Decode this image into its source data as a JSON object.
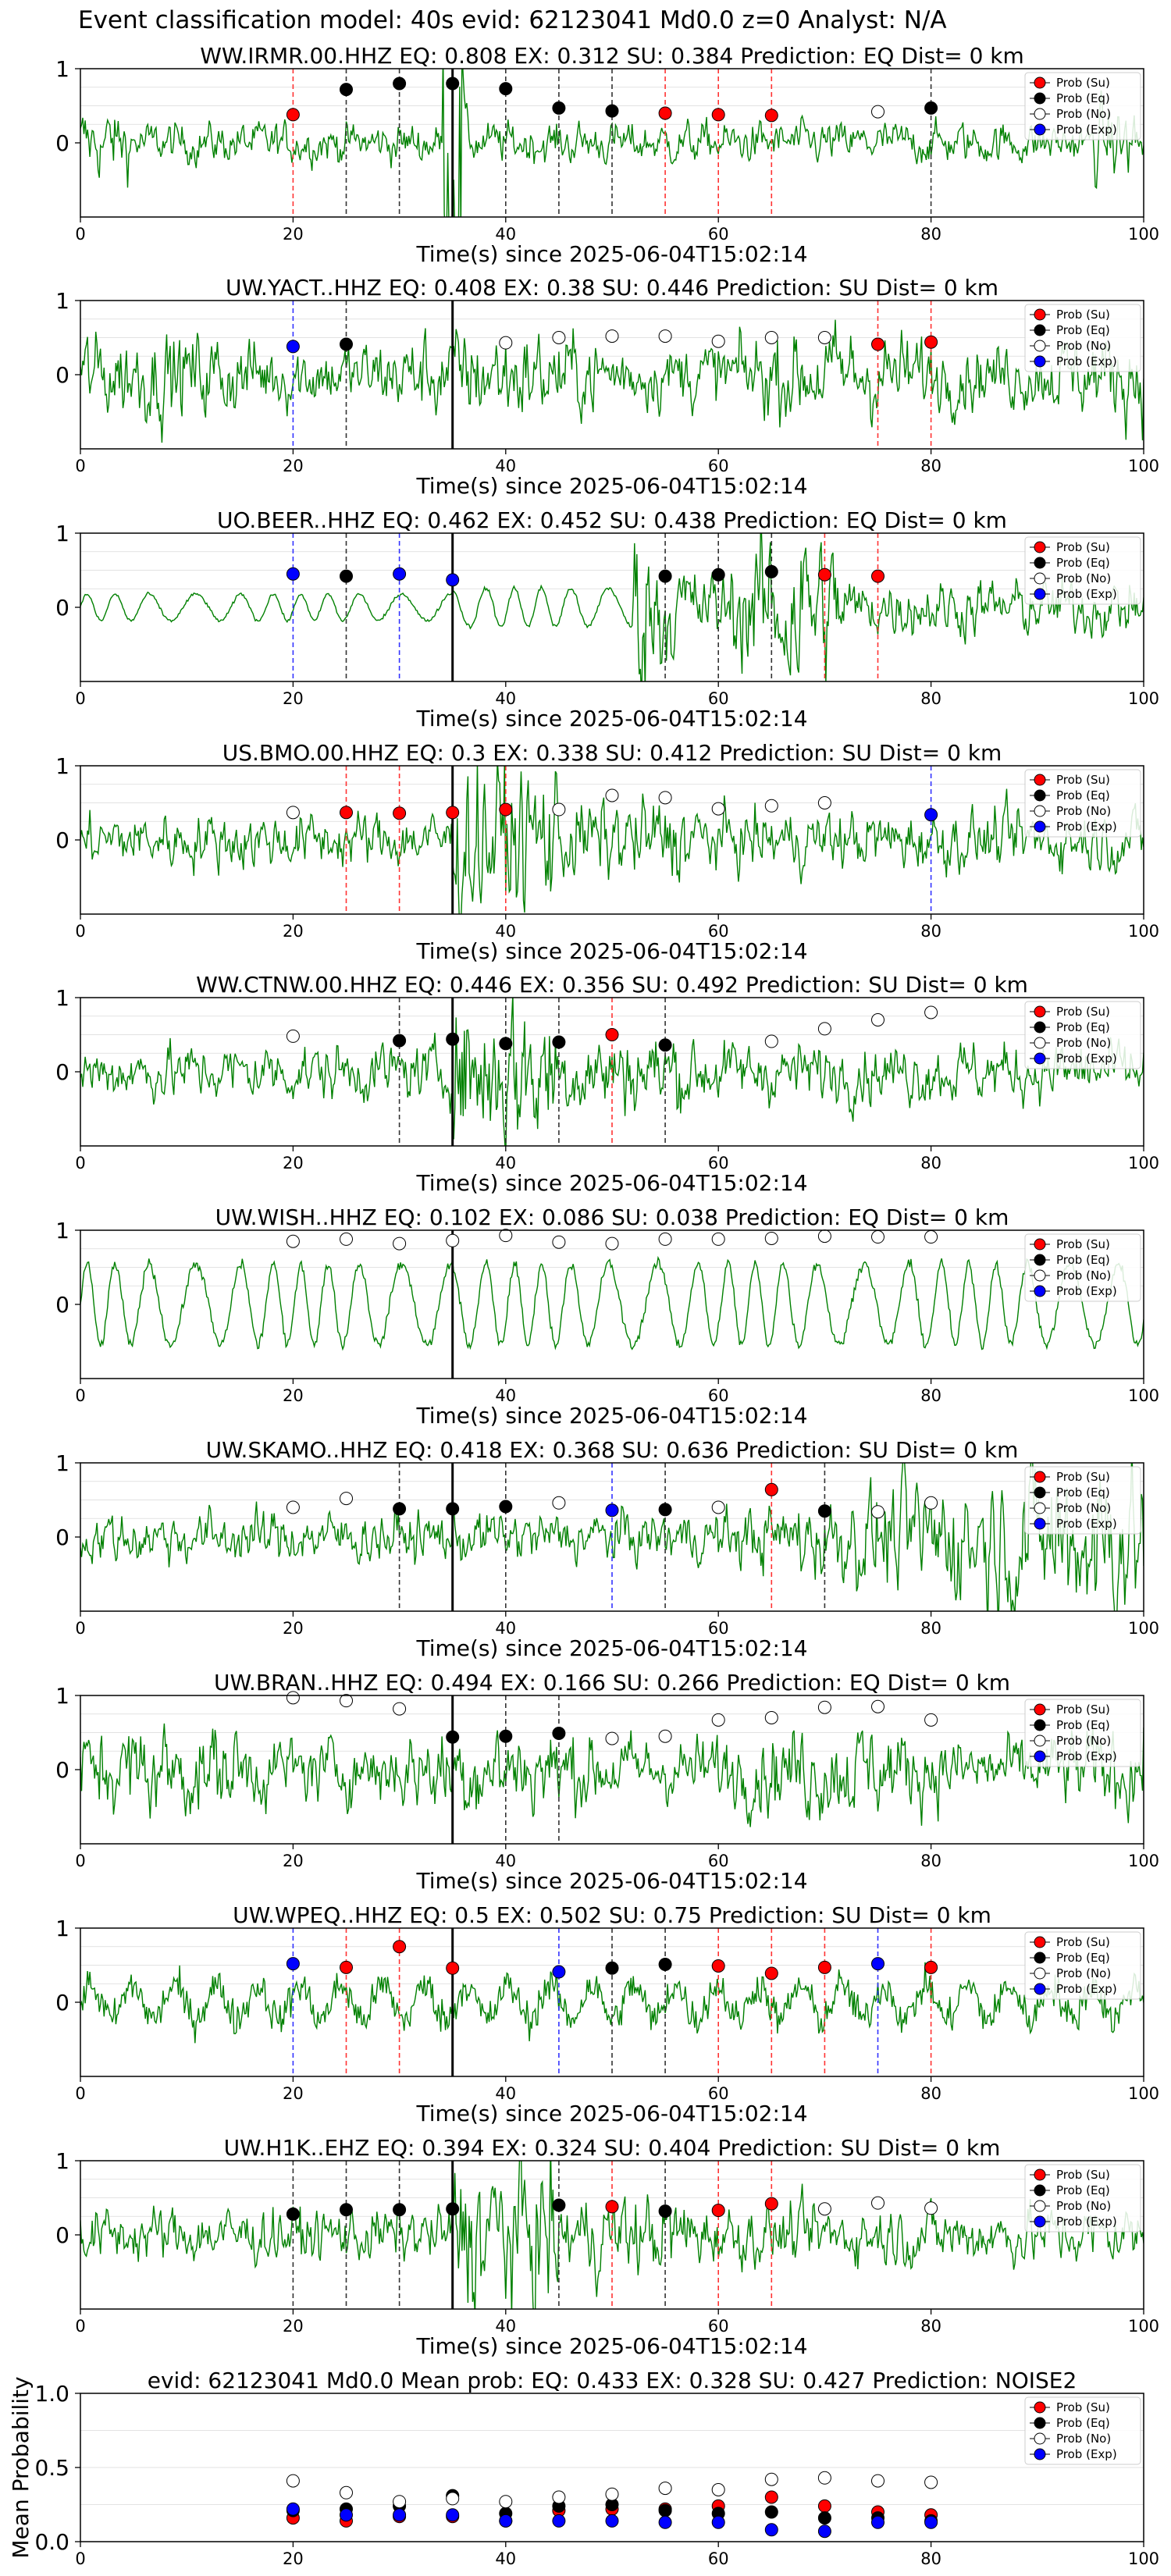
{
  "suptitle": "Event classification model: 40s evid: 62123041 Md0.0 z=0 Analyst: N/A",
  "colors": {
    "trace": "#008000",
    "su": "#ff0000",
    "eq": "#000000",
    "no": "#ffffff",
    "exp": "#0000ff",
    "vline_su": "#ff3333",
    "vline_eq": "#333333",
    "vline_exp": "#3333ff",
    "grid": "#d9d9d9"
  },
  "legend": {
    "position": "top-right",
    "entries": [
      {
        "key": "su",
        "label": "Prob (Su)"
      },
      {
        "key": "eq",
        "label": "Prob (Eq)"
      },
      {
        "key": "no",
        "label": "Prob (No)"
      },
      {
        "key": "exp",
        "label": "Prob (Exp)"
      }
    ]
  },
  "chart_data": [
    {
      "type": "line",
      "title": "WW.IRMR.00.HHZ   EQ: 0.808  EX: 0.312  SU: 0.384   Prediction: EQ    Dist= 0 km",
      "xlabel": "Time(s) since 2025-06-04T15:02:14",
      "xlim": [
        0,
        100
      ],
      "ylim": [
        -1,
        1
      ],
      "xticks": [
        0,
        20,
        40,
        60,
        80,
        100
      ],
      "yticks": [
        0,
        1
      ],
      "p_arrival": 35,
      "trace_style": "impulsive",
      "window_x": [
        20,
        25,
        30,
        35,
        40,
        45,
        50,
        55,
        60,
        65,
        75,
        80
      ],
      "classes": [
        "su",
        "eq",
        "eq",
        "eq",
        "eq",
        "eq",
        "eq",
        "su",
        "su",
        "su",
        "no",
        "eq"
      ],
      "prob": [
        0.38,
        0.72,
        0.8,
        0.8,
        0.73,
        0.47,
        0.43,
        0.4,
        0.38,
        0.37,
        0.42,
        0.47
      ]
    },
    {
      "type": "line",
      "title": "UW.YACT..HHZ   EQ: 0.408  EX: 0.38  SU: 0.446   Prediction: SU    Dist= 0 km",
      "xlabel": "Time(s) since 2025-06-04T15:02:14",
      "xlim": [
        0,
        100
      ],
      "ylim": [
        -1,
        1
      ],
      "xticks": [
        0,
        20,
        40,
        60,
        80,
        100
      ],
      "yticks": [
        0,
        1
      ],
      "p_arrival": 35,
      "trace_style": "broadband",
      "window_x": [
        20,
        25,
        40,
        45,
        50,
        55,
        60,
        65,
        70,
        75,
        80
      ],
      "classes": [
        "exp",
        "eq",
        "no",
        "no",
        "no",
        "no",
        "no",
        "no",
        "no",
        "su",
        "su"
      ],
      "prob": [
        0.38,
        0.41,
        0.43,
        0.5,
        0.52,
        0.52,
        0.45,
        0.5,
        0.5,
        0.41,
        0.44
      ]
    },
    {
      "type": "line",
      "title": "UO.BEER..HHZ   EQ: 0.462  EX: 0.452  SU: 0.438   Prediction: EQ    Dist= 0 km",
      "xlabel": "Time(s) since 2025-06-04T15:02:14",
      "xlim": [
        0,
        100
      ],
      "ylim": [
        -1,
        1
      ],
      "xticks": [
        0,
        20,
        40,
        60,
        80,
        100
      ],
      "yticks": [
        0,
        1
      ],
      "p_arrival": 35,
      "trace_style": "late_burst",
      "window_x": [
        20,
        25,
        30,
        35,
        55,
        60,
        65,
        70,
        75
      ],
      "classes": [
        "exp",
        "eq",
        "exp",
        "exp",
        "eq",
        "eq",
        "eq",
        "su",
        "su"
      ],
      "prob": [
        0.45,
        0.42,
        0.45,
        0.37,
        0.42,
        0.44,
        0.48,
        0.44,
        0.42
      ]
    },
    {
      "type": "line",
      "title": "US.BMO.00.HHZ   EQ: 0.3  EX: 0.338  SU: 0.412   Prediction: SU    Dist= 0 km",
      "xlabel": "Time(s) since 2025-06-04T15:02:14",
      "xlim": [
        0,
        100
      ],
      "ylim": [
        -1,
        1
      ],
      "xticks": [
        0,
        20,
        40,
        60,
        80,
        100
      ],
      "yticks": [
        0,
        1
      ],
      "p_arrival": 35,
      "trace_style": "burst",
      "window_x": [
        20,
        25,
        30,
        35,
        40,
        45,
        50,
        55,
        60,
        65,
        70,
        80
      ],
      "classes": [
        "no",
        "su",
        "su",
        "su",
        "su",
        "no",
        "no",
        "no",
        "no",
        "no",
        "no",
        "exp"
      ],
      "prob": [
        0.37,
        0.37,
        0.36,
        0.37,
        0.41,
        0.41,
        0.6,
        0.57,
        0.42,
        0.46,
        0.5,
        0.34
      ]
    },
    {
      "type": "line",
      "title": "WW.CTNW.00.HHZ   EQ: 0.446  EX: 0.356  SU: 0.492   Prediction: SU    Dist= 0 km",
      "xlabel": "Time(s) since 2025-06-04T15:02:14",
      "xlim": [
        0,
        100
      ],
      "ylim": [
        -1,
        1
      ],
      "xticks": [
        0,
        20,
        40,
        60,
        80,
        100
      ],
      "yticks": [
        0,
        1
      ],
      "p_arrival": 35,
      "trace_style": "burst",
      "window_x": [
        20,
        30,
        35,
        40,
        45,
        50,
        55,
        65,
        70,
        75,
        80
      ],
      "classes": [
        "no",
        "eq",
        "eq",
        "eq",
        "eq",
        "su",
        "eq",
        "no",
        "no",
        "no",
        "no"
      ],
      "prob": [
        0.48,
        0.42,
        0.44,
        0.38,
        0.4,
        0.5,
        0.36,
        0.41,
        0.58,
        0.7,
        0.8
      ]
    },
    {
      "type": "line",
      "title": "UW.WISH..HHZ   EQ: 0.102  EX: 0.086  SU: 0.038   Prediction: EQ    Dist= 0 km",
      "xlabel": "Time(s) since 2025-06-04T15:02:14",
      "xlim": [
        0,
        100
      ],
      "ylim": [
        -1,
        1
      ],
      "xticks": [
        0,
        20,
        40,
        60,
        80,
        100
      ],
      "yticks": [
        0,
        1
      ],
      "p_arrival": 35,
      "trace_style": "lowfreq",
      "window_x": [
        20,
        25,
        30,
        35,
        40,
        45,
        50,
        55,
        60,
        65,
        70,
        75,
        80
      ],
      "classes": [
        "no",
        "no",
        "no",
        "no",
        "no",
        "no",
        "no",
        "no",
        "no",
        "no",
        "no",
        "no",
        "no"
      ],
      "prob": [
        0.85,
        0.88,
        0.82,
        0.86,
        0.93,
        0.84,
        0.82,
        0.88,
        0.88,
        0.89,
        0.92,
        0.91,
        0.91
      ]
    },
    {
      "type": "line",
      "title": "UW.SKAMO..HHZ   EQ: 0.418  EX: 0.368  SU: 0.636   Prediction: SU    Dist= 0 km",
      "xlabel": "Time(s) since 2025-06-04T15:02:14",
      "xlim": [
        0,
        100
      ],
      "ylim": [
        -1,
        1
      ],
      "xticks": [
        0,
        20,
        40,
        60,
        80,
        100
      ],
      "yticks": [
        0,
        1
      ],
      "p_arrival": 35,
      "trace_style": "growing",
      "window_x": [
        20,
        25,
        30,
        35,
        40,
        45,
        50,
        55,
        60,
        65,
        70,
        75,
        80
      ],
      "classes": [
        "no",
        "no",
        "eq",
        "eq",
        "eq",
        "no",
        "exp",
        "eq",
        "no",
        "su",
        "eq",
        "no",
        "no"
      ],
      "prob": [
        0.4,
        0.52,
        0.38,
        0.38,
        0.41,
        0.46,
        0.36,
        0.37,
        0.4,
        0.64,
        0.35,
        0.34,
        0.46
      ]
    },
    {
      "type": "line",
      "title": "UW.BRAN..HHZ   EQ: 0.494  EX: 0.166  SU: 0.266   Prediction: EQ    Dist= 0 km",
      "xlabel": "Time(s) since 2025-06-04T15:02:14",
      "xlim": [
        0,
        100
      ],
      "ylim": [
        -1,
        1
      ],
      "xticks": [
        0,
        20,
        40,
        60,
        80,
        100
      ],
      "yticks": [
        0,
        1
      ],
      "p_arrival": 35,
      "trace_style": "broadband",
      "window_x": [
        20,
        25,
        30,
        35,
        40,
        45,
        50,
        55,
        60,
        65,
        70,
        75,
        80
      ],
      "classes": [
        "no",
        "no",
        "no",
        "eq",
        "eq",
        "eq",
        "no",
        "no",
        "no",
        "no",
        "no",
        "no",
        "no"
      ],
      "prob": [
        0.97,
        0.93,
        0.82,
        0.44,
        0.45,
        0.49,
        0.42,
        0.45,
        0.67,
        0.7,
        0.84,
        0.85,
        0.67
      ]
    },
    {
      "type": "line",
      "title": "UW.WPEQ..HHZ   EQ: 0.5  EX: 0.502  SU: 0.75   Prediction: SU    Dist= 0 km",
      "xlabel": "Time(s) since 2025-06-04T15:02:14",
      "xlim": [
        0,
        100
      ],
      "ylim": [
        -1,
        1
      ],
      "xticks": [
        0,
        20,
        40,
        60,
        80,
        100
      ],
      "yticks": [
        0,
        1
      ],
      "p_arrival": 35,
      "trace_style": "mixed",
      "window_x": [
        20,
        25,
        30,
        35,
        45,
        50,
        55,
        60,
        65,
        70,
        75,
        80
      ],
      "classes": [
        "exp",
        "su",
        "su",
        "su",
        "exp",
        "eq",
        "eq",
        "su",
        "su",
        "su",
        "exp",
        "su"
      ],
      "prob": [
        0.52,
        0.47,
        0.75,
        0.46,
        0.41,
        0.46,
        0.51,
        0.49,
        0.39,
        0.47,
        0.52,
        0.47
      ]
    },
    {
      "type": "line",
      "title": "UW.H1K..EHZ   EQ: 0.394  EX: 0.324  SU: 0.404   Prediction: SU    Dist= 0 km",
      "xlabel": "Time(s) since 2025-06-04T15:02:14",
      "xlim": [
        0,
        100
      ],
      "ylim": [
        -1,
        1
      ],
      "xticks": [
        0,
        20,
        40,
        60,
        80,
        100
      ],
      "yticks": [
        0,
        1
      ],
      "p_arrival": 35,
      "trace_style": "burst",
      "window_x": [
        20,
        25,
        30,
        35,
        45,
        50,
        55,
        60,
        65,
        70,
        75,
        80
      ],
      "classes": [
        "eq",
        "eq",
        "eq",
        "eq",
        "eq",
        "su",
        "eq",
        "su",
        "su",
        "no",
        "no",
        "no"
      ],
      "prob": [
        0.28,
        0.34,
        0.34,
        0.35,
        0.4,
        0.38,
        0.32,
        0.33,
        0.42,
        0.35,
        0.43,
        0.36
      ]
    },
    {
      "type": "scatter",
      "title": "evid: 62123041   Md0.0   Mean prob:   EQ: 0.433  EX: 0.328  SU: 0.427   Prediction: NOISE2",
      "ylabel": "Mean Probability",
      "xlim": [
        0,
        100
      ],
      "ylim": [
        0,
        1
      ],
      "xticks": [
        0,
        20,
        40,
        60,
        80,
        100
      ],
      "yticks": [
        0.0,
        0.5,
        1.0
      ],
      "x": [
        20,
        25,
        30,
        35,
        40,
        45,
        50,
        55,
        60,
        65,
        70,
        75,
        80
      ],
      "series": [
        {
          "name": "Prob (Su)",
          "key": "su",
          "values": [
            0.16,
            0.14,
            0.17,
            0.17,
            0.14,
            0.21,
            0.22,
            0.22,
            0.24,
            0.3,
            0.24,
            0.2,
            0.18
          ]
        },
        {
          "name": "Prob (Eq)",
          "key": "eq",
          "values": [
            0.21,
            0.22,
            0.24,
            0.31,
            0.19,
            0.24,
            0.25,
            0.21,
            0.19,
            0.2,
            0.16,
            0.16,
            0.14
          ]
        },
        {
          "name": "Prob (No)",
          "key": "no",
          "values": [
            0.41,
            0.33,
            0.27,
            0.29,
            0.27,
            0.3,
            0.32,
            0.36,
            0.35,
            0.42,
            0.43,
            0.41,
            0.4
          ]
        },
        {
          "name": "Prob (Exp)",
          "key": "exp",
          "values": [
            0.22,
            0.18,
            0.18,
            0.18,
            0.14,
            0.14,
            0.14,
            0.13,
            0.13,
            0.08,
            0.07,
            0.13,
            0.13
          ]
        }
      ]
    }
  ]
}
